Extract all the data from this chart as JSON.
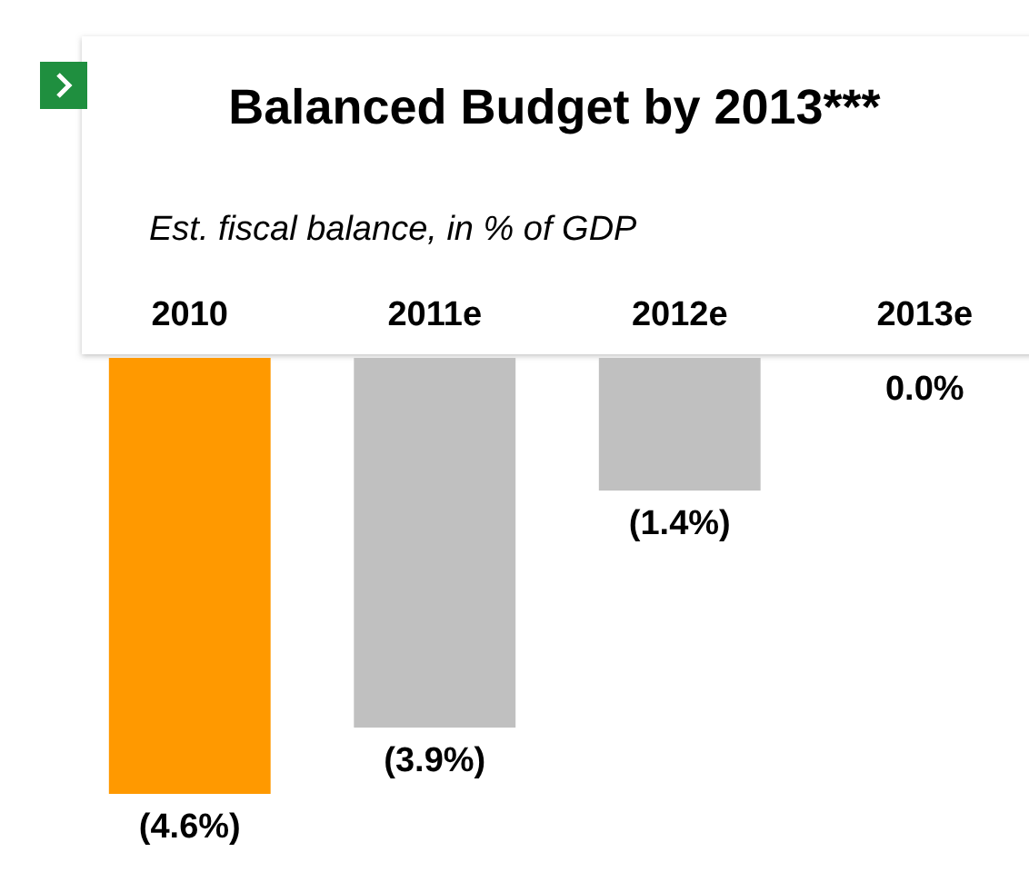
{
  "chart_data": {
    "type": "bar",
    "title": "Balanced Budget by 2013***",
    "subtitle": "Est. fiscal balance, in % of GDP",
    "categories": [
      "2010",
      "2011e",
      "2012e",
      "2013e"
    ],
    "values": [
      -4.6,
      -3.9,
      -1.4,
      0.0
    ],
    "colors": [
      "#ff9900",
      "#c0c0c0",
      "#c0c0c0",
      "#c0c0c0"
    ],
    "value_labels": [
      "(4.6%)",
      "(3.9%)",
      "(1.4%)",
      "0.0%"
    ]
  }
}
